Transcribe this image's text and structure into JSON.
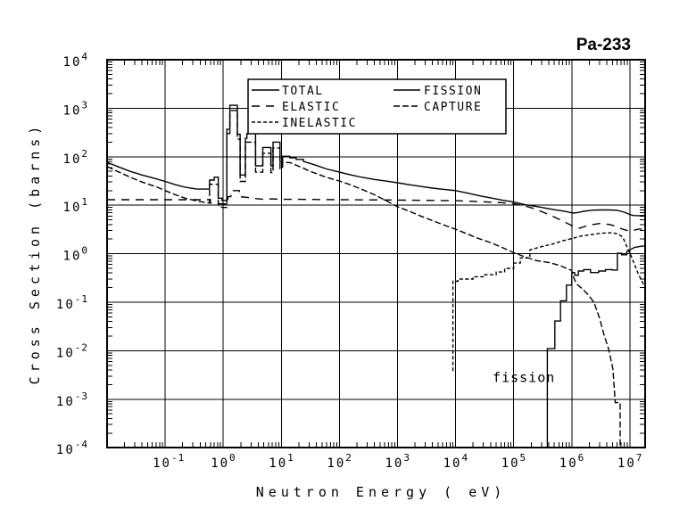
{
  "title": "Pa-233",
  "colors": {
    "line": "#000000",
    "background": "#ffffff"
  },
  "axes": {
    "x": {
      "label": "Neutron Energy ( eV)",
      "scale": "log",
      "tick_exponents": [
        -1,
        0,
        1,
        2,
        3,
        4,
        5,
        6,
        7
      ]
    },
    "y": {
      "label": "Cross Section (barns)",
      "scale": "log",
      "tick_exponents": [
        4,
        3,
        2,
        1,
        0,
        -1,
        -2,
        -3,
        -4
      ]
    }
  },
  "legend": [
    {
      "label": "TOTAL",
      "dash": "solid"
    },
    {
      "label": "ELASTIC",
      "dash": "long-dash"
    },
    {
      "label": "INELASTIC",
      "dash": "fine-dash"
    },
    {
      "label": "FISSION",
      "dash": "solid"
    },
    {
      "label": "CAPTURE",
      "dash": "medium-dash"
    }
  ],
  "chart_data": {
    "type": "line",
    "title": "Pa-233 neutron cross sections",
    "x_unit": "eV",
    "y_unit": "barns",
    "x_scale": "log",
    "y_scale": "log",
    "xlim": [
      0.01,
      20000000
    ],
    "ylim": [
      0.0001,
      10000
    ],
    "grid": true,
    "legend_position": "top-center",
    "annotations": [
      {
        "text": "fission",
        "x": 150000,
        "y": 0.0028
      }
    ],
    "series": [
      {
        "name": "CAPTURE",
        "dash": "medium-dash",
        "points": [
          [
            0.01,
            63
          ],
          [
            0.015,
            50
          ],
          [
            0.025,
            38
          ],
          [
            0.04,
            30
          ],
          [
            0.07,
            24
          ],
          [
            0.1,
            20
          ],
          [
            0.15,
            16.5
          ],
          [
            0.22,
            14
          ],
          [
            0.35,
            12.2
          ],
          [
            0.55,
            11.2
          ],
          [
            0.58,
            11.2
          ],
          [
            0.58,
            27
          ],
          [
            0.82,
            27
          ],
          [
            0.82,
            10
          ],
          [
            0.95,
            9
          ],
          [
            1.15,
            9
          ],
          [
            1.15,
            300
          ],
          [
            1.3,
            300
          ],
          [
            1.3,
            900
          ],
          [
            1.75,
            900
          ],
          [
            1.75,
            230
          ],
          [
            1.95,
            230
          ],
          [
            1.95,
            31
          ],
          [
            2.4,
            31
          ],
          [
            2.4,
            200
          ],
          [
            3.6,
            200
          ],
          [
            3.6,
            48
          ],
          [
            4.8,
            48
          ],
          [
            4.8,
            118
          ],
          [
            6.6,
            118
          ],
          [
            6.6,
            47
          ],
          [
            7.2,
            47
          ],
          [
            7.2,
            152
          ],
          [
            9.5,
            152
          ],
          [
            9.5,
            57
          ],
          [
            10.5,
            57
          ],
          [
            10.5,
            76
          ],
          [
            14,
            76
          ],
          [
            18,
            67
          ],
          [
            24,
            58
          ],
          [
            30,
            51
          ],
          [
            40,
            45
          ],
          [
            60,
            37.5
          ],
          [
            100,
            31.6
          ],
          [
            160,
            26
          ],
          [
            250,
            21
          ],
          [
            400,
            16.5
          ],
          [
            630,
            12.5
          ],
          [
            1000,
            9.3
          ],
          [
            1600,
            7.5
          ],
          [
            2500,
            6.0
          ],
          [
            4000,
            4.8
          ],
          [
            6300,
            3.9
          ],
          [
            10000,
            3.2
          ],
          [
            16000,
            2.55
          ],
          [
            25000,
            2.05
          ],
          [
            40000,
            1.7
          ],
          [
            63000,
            1.35
          ],
          [
            100000,
            1.05
          ],
          [
            160000,
            0.85
          ],
          [
            250000,
            0.72
          ],
          [
            400000,
            0.66
          ],
          [
            630000,
            0.57
          ],
          [
            1000000,
            0.45
          ],
          [
            1070000,
            0.33
          ],
          [
            1200000,
            0.24
          ],
          [
            1550000,
            0.185
          ],
          [
            1900000,
            0.145
          ],
          [
            2400000,
            0.1
          ],
          [
            3000000,
            0.047
          ],
          [
            3600000,
            0.021
          ],
          [
            4300000,
            0.011
          ],
          [
            5100000,
            0.0042
          ],
          [
            5600000,
            0.00085
          ],
          [
            6800000,
            0.00085
          ],
          [
            6800000,
            0.0001
          ]
        ]
      },
      {
        "name": "INELASTIC",
        "dash": "fine-dash",
        "points": [
          [
            9000,
            0.0038
          ],
          [
            9000,
            0.27
          ],
          [
            11000,
            0.27
          ],
          [
            11000,
            0.3
          ],
          [
            20000,
            0.3
          ],
          [
            20000,
            0.335
          ],
          [
            32000,
            0.335
          ],
          [
            32000,
            0.37
          ],
          [
            50000,
            0.37
          ],
          [
            50000,
            0.42
          ],
          [
            70000,
            0.42
          ],
          [
            70000,
            0.5
          ],
          [
            100000,
            0.5
          ],
          [
            100000,
            0.64
          ],
          [
            130000,
            0.64
          ],
          [
            130000,
            0.82
          ],
          [
            190000,
            0.82
          ],
          [
            190000,
            1.2
          ],
          [
            300000,
            1.4
          ],
          [
            500000,
            1.62
          ],
          [
            700000,
            1.85
          ],
          [
            1000000,
            2.05
          ],
          [
            1400000,
            2.3
          ],
          [
            2200000,
            2.5
          ],
          [
            3200000,
            2.65
          ],
          [
            4500000,
            2.7
          ],
          [
            5500000,
            2.65
          ],
          [
            6500000,
            2.5
          ],
          [
            7500000,
            2.2
          ],
          [
            8500000,
            1.6
          ],
          [
            9500000,
            1.15
          ],
          [
            10500000,
            0.9
          ],
          [
            12000000,
            0.6
          ],
          [
            14000000,
            0.38
          ],
          [
            17000000,
            0.24
          ],
          [
            19000000,
            0.2
          ]
        ]
      },
      {
        "name": "ELASTIC",
        "dash": "long-dash",
        "points": [
          [
            0.01,
            13
          ],
          [
            0.3,
            13
          ],
          [
            0.6,
            13
          ],
          [
            0.6,
            11
          ],
          [
            1.2,
            10.5
          ],
          [
            1.2,
            15
          ],
          [
            1.35,
            15
          ],
          [
            1.35,
            20
          ],
          [
            1.9,
            20
          ],
          [
            1.9,
            15
          ],
          [
            2.6,
            14.5
          ],
          [
            3.5,
            13.8
          ],
          [
            5,
            13.2
          ],
          [
            7,
            13.5
          ],
          [
            10,
            13.2
          ],
          [
            20,
            13.2
          ],
          [
            100,
            13
          ],
          [
            1000,
            12.8
          ],
          [
            10000,
            12.4
          ],
          [
            30000,
            11.8
          ],
          [
            60000,
            11.3
          ],
          [
            100000,
            10.8
          ],
          [
            150000,
            9.8
          ],
          [
            220000,
            8.6
          ],
          [
            320000,
            7.2
          ],
          [
            460000,
            6.0
          ],
          [
            680000,
            4.8
          ],
          [
            1000000,
            3.8
          ],
          [
            1350000,
            3.35
          ],
          [
            2000000,
            3.9
          ],
          [
            3000000,
            4.2
          ],
          [
            4500000,
            4.0
          ],
          [
            6000000,
            3.6
          ],
          [
            7500000,
            3.2
          ],
          [
            9000000,
            3.0
          ],
          [
            11000000,
            3.0
          ],
          [
            14000000,
            3.2
          ],
          [
            19000000,
            3.3
          ]
        ]
      },
      {
        "name": "FISSION",
        "dash": "solid",
        "points": [
          [
            380000,
            0.0001
          ],
          [
            380000,
            0.011
          ],
          [
            510000,
            0.011
          ],
          [
            510000,
            0.041
          ],
          [
            640000,
            0.041
          ],
          [
            640000,
            0.107
          ],
          [
            810000,
            0.107
          ],
          [
            810000,
            0.225
          ],
          [
            1000000,
            0.225
          ],
          [
            1000000,
            0.41
          ],
          [
            1120000,
            0.41
          ],
          [
            1120000,
            0.36
          ],
          [
            1300000,
            0.36
          ],
          [
            1300000,
            0.44
          ],
          [
            1600000,
            0.44
          ],
          [
            1600000,
            0.47
          ],
          [
            2100000,
            0.47
          ],
          [
            2100000,
            0.41
          ],
          [
            2900000,
            0.41
          ],
          [
            2900000,
            0.44
          ],
          [
            3800000,
            0.44
          ],
          [
            3800000,
            0.47
          ],
          [
            5000000,
            0.47
          ],
          [
            5000000,
            0.46
          ],
          [
            6100000,
            0.46
          ],
          [
            6100000,
            1.02
          ],
          [
            7200000,
            1.02
          ],
          [
            7200000,
            0.95
          ],
          [
            8800000,
            0.95
          ],
          [
            8800000,
            1.1
          ],
          [
            10000000,
            1.2
          ],
          [
            12000000,
            1.35
          ],
          [
            16000000,
            1.43
          ],
          [
            20000000,
            1.45
          ]
        ]
      },
      {
        "name": "TOTAL",
        "dash": "solid",
        "points": [
          [
            0.01,
            77
          ],
          [
            0.015,
            63
          ],
          [
            0.025,
            50
          ],
          [
            0.04,
            42
          ],
          [
            0.07,
            35
          ],
          [
            0.1,
            31
          ],
          [
            0.15,
            26.5
          ],
          [
            0.22,
            23.5
          ],
          [
            0.35,
            21.5
          ],
          [
            0.55,
            21.5
          ],
          [
            0.58,
            21.5
          ],
          [
            0.58,
            33
          ],
          [
            0.7,
            33
          ],
          [
            0.7,
            38
          ],
          [
            0.82,
            38
          ],
          [
            0.82,
            14
          ],
          [
            0.95,
            14
          ],
          [
            0.95,
            12.5
          ],
          [
            1.15,
            12.5
          ],
          [
            1.15,
            370
          ],
          [
            1.3,
            370
          ],
          [
            1.3,
            1150
          ],
          [
            1.75,
            1150
          ],
          [
            1.75,
            290
          ],
          [
            1.95,
            290
          ],
          [
            1.95,
            42
          ],
          [
            2.4,
            42
          ],
          [
            2.4,
            240
          ],
          [
            2.55,
            240
          ],
          [
            2.55,
            300
          ],
          [
            3.6,
            300
          ],
          [
            3.6,
            65
          ],
          [
            4.8,
            65
          ],
          [
            4.8,
            155
          ],
          [
            6.6,
            155
          ],
          [
            6.6,
            65
          ],
          [
            7.2,
            65
          ],
          [
            7.2,
            200
          ],
          [
            9.5,
            200
          ],
          [
            9.5,
            78
          ],
          [
            10.5,
            78
          ],
          [
            10.5,
            102
          ],
          [
            14,
            102
          ],
          [
            14,
            95
          ],
          [
            18,
            95
          ],
          [
            18,
            88
          ],
          [
            24,
            88
          ],
          [
            24,
            80
          ],
          [
            30,
            74
          ],
          [
            40,
            66
          ],
          [
            60,
            56
          ],
          [
            100,
            48
          ],
          [
            160,
            42
          ],
          [
            250,
            37.5
          ],
          [
            400,
            34
          ],
          [
            630,
            31.5
          ],
          [
            1000,
            29
          ],
          [
            1600,
            26.5
          ],
          [
            2500,
            24.4
          ],
          [
            4000,
            22.5
          ],
          [
            6300,
            21.2
          ],
          [
            10000,
            20
          ],
          [
            16000,
            17.8
          ],
          [
            25000,
            15.8
          ],
          [
            40000,
            14.2
          ],
          [
            63000,
            12.8
          ],
          [
            100000,
            11.7
          ],
          [
            150000,
            10.4
          ],
          [
            250000,
            9.4
          ],
          [
            500000,
            8.1
          ],
          [
            800000,
            7.4
          ],
          [
            1050000,
            6.9
          ],
          [
            1300000,
            7.1
          ],
          [
            1600000,
            7.5
          ],
          [
            2200000,
            7.9
          ],
          [
            3000000,
            8.0
          ],
          [
            4500000,
            8.0
          ],
          [
            6000000,
            7.9
          ],
          [
            7000000,
            7.5
          ],
          [
            8000000,
            7.2
          ],
          [
            9000000,
            6.8
          ],
          [
            10000000,
            6.4
          ],
          [
            11500000,
            6.15
          ],
          [
            14000000,
            6.1
          ],
          [
            19000000,
            6.15
          ]
        ]
      }
    ]
  }
}
